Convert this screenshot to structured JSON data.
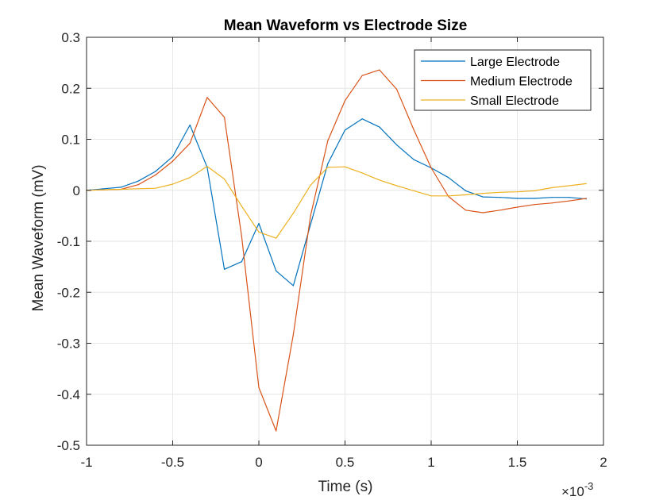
{
  "chart_data": {
    "type": "line",
    "title": "Mean Waveform vs Electrode Size",
    "xlabel": "Time (s)",
    "ylabel": "Mean Waveform (mV)",
    "x_exponent_label": "×10",
    "x_exponent_value": "-3",
    "xlim": [
      -1,
      2
    ],
    "ylim": [
      -0.5,
      0.3
    ],
    "xticks": [
      -1,
      -0.5,
      0,
      0.5,
      1,
      1.5,
      2
    ],
    "xtick_labels": [
      "-1",
      "-0.5",
      "0",
      "0.5",
      "1",
      "1.5",
      "2"
    ],
    "yticks": [
      -0.5,
      -0.4,
      -0.3,
      -0.2,
      -0.1,
      0,
      0.1,
      0.2,
      0.3
    ],
    "ytick_labels": [
      "-0.5",
      "-0.4",
      "-0.3",
      "-0.2",
      "-0.1",
      "0",
      "0.1",
      "0.2",
      "0.3"
    ],
    "grid": true,
    "legend_position": "top-right",
    "x": [
      -1,
      -0.9,
      -0.8,
      -0.7,
      -0.6,
      -0.5,
      -0.4,
      -0.3,
      -0.2,
      -0.1,
      0,
      0.1,
      0.2,
      0.3,
      0.4,
      0.5,
      0.6,
      0.7,
      0.8,
      0.9,
      1.0,
      1.1,
      1.2,
      1.3,
      1.4,
      1.5,
      1.6,
      1.7,
      1.8,
      1.9
    ],
    "series": [
      {
        "name": "Large Electrode",
        "color": "#0072BD",
        "values": [
          0.0,
          0.003,
          0.006,
          0.018,
          0.037,
          0.066,
          0.128,
          0.045,
          -0.155,
          -0.14,
          -0.065,
          -0.158,
          -0.187,
          -0.067,
          0.052,
          0.118,
          0.14,
          0.124,
          0.089,
          0.06,
          0.044,
          0.025,
          -0.001,
          -0.013,
          -0.014,
          -0.016,
          -0.016,
          -0.014,
          -0.014,
          -0.017
        ]
      },
      {
        "name": "Medium Electrode",
        "color": "#D95319",
        "values": [
          0.0,
          0.001,
          0.002,
          0.011,
          0.03,
          0.057,
          0.092,
          0.182,
          0.143,
          -0.09,
          -0.387,
          -0.472,
          -0.283,
          -0.05,
          0.097,
          0.176,
          0.225,
          0.236,
          0.198,
          0.118,
          0.044,
          -0.012,
          -0.039,
          -0.044,
          -0.039,
          -0.033,
          -0.028,
          -0.025,
          -0.021,
          -0.016
        ]
      },
      {
        "name": "Small Electrode",
        "color": "#EDB120",
        "values": [
          0.0,
          0.001,
          0.002,
          0.003,
          0.004,
          0.012,
          0.025,
          0.047,
          0.022,
          -0.031,
          -0.082,
          -0.094,
          -0.045,
          0.01,
          0.045,
          0.046,
          0.034,
          0.02,
          0.009,
          -0.001,
          -0.011,
          -0.011,
          -0.009,
          -0.006,
          -0.004,
          -0.003,
          -0.001,
          0.005,
          0.009,
          0.013
        ]
      }
    ]
  }
}
